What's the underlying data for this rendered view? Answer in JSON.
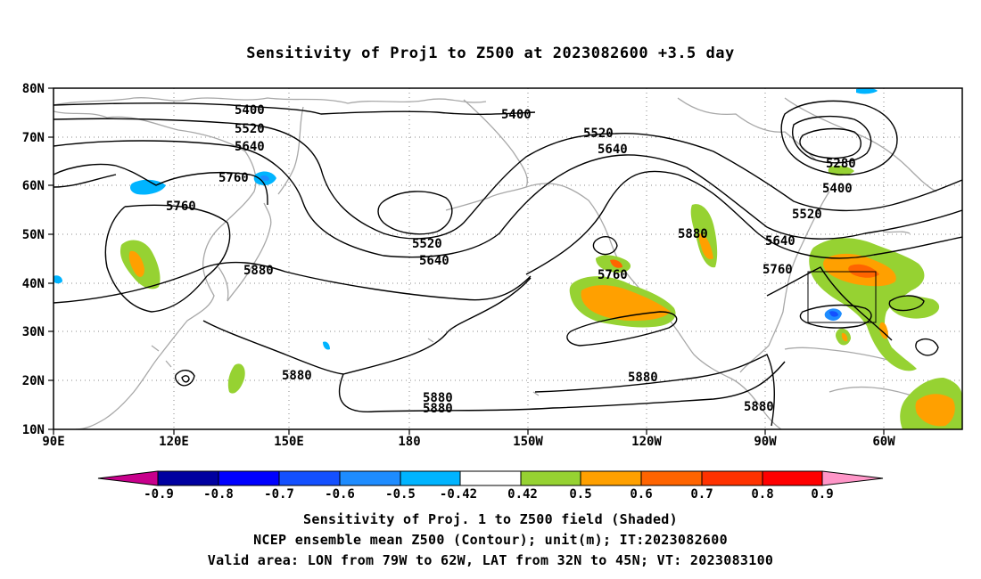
{
  "title": "Sensitivity of Proj1 to Z500 at 2023082600 +3.5 day",
  "map": {
    "lat_labels": [
      "80N",
      "70N",
      "60N",
      "50N",
      "40N",
      "30N",
      "20N",
      "10N"
    ],
    "lon_labels": [
      "90E",
      "120E",
      "150E",
      "180",
      "150W",
      "120W",
      "90W",
      "60W"
    ],
    "lon_range": [
      90,
      330
    ],
    "lat_range": [
      10,
      80
    ],
    "grid": "dotted",
    "coastline_color": "#a8a8a8",
    "contour_color": "#000000",
    "contour_labels": [
      "5400",
      "5520",
      "5640",
      "5760",
      "5880",
      "5280"
    ],
    "valid_box": {
      "lon": [
        -79,
        -62
      ],
      "lat": [
        32,
        45
      ]
    }
  },
  "colorbar": {
    "labels": [
      "-0.9",
      "-0.8",
      "-0.7",
      "-0.6",
      "-0.5",
      "-0.42",
      "0.42",
      "0.5",
      "0.6",
      "0.7",
      "0.8",
      "0.9"
    ],
    "colors": [
      "#c8008c",
      "#0000a0",
      "#0000ff",
      "#1450ff",
      "#1e8cff",
      "#00b4ff",
      "#ffffff",
      "#96d232",
      "#ffa000",
      "#ff6400",
      "#ff3200",
      "#ff0000",
      "#ff96c8"
    ]
  },
  "captions": {
    "line1": "Sensitivity of Proj. 1 to Z500 field (Shaded)",
    "line2": "NCEP ensemble mean Z500 (Contour); unit(m); IT:2023082600",
    "line3": "Valid area: LON from 79W to 62W, LAT from 32N to 45N; VT: 2023083100"
  }
}
